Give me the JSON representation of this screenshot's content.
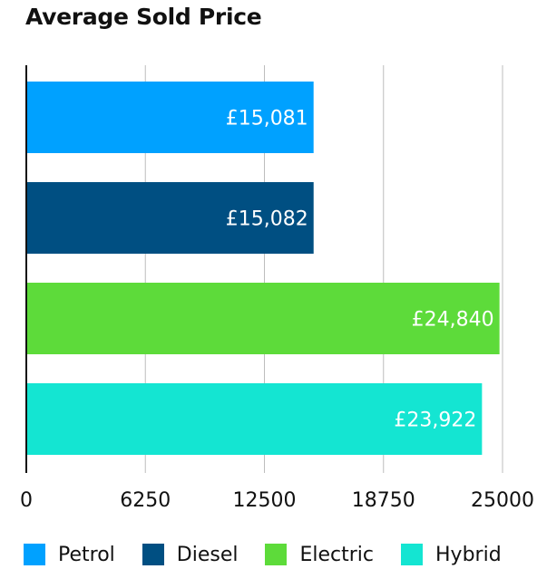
{
  "chart_data": {
    "type": "bar",
    "orientation": "horizontal",
    "title": "Average Sold Price",
    "xlabel": "",
    "ylabel": "",
    "xlim": [
      0,
      25000
    ],
    "x_ticks": [
      0,
      6250,
      12500,
      18750,
      25000
    ],
    "grid": true,
    "legend_position": "bottom",
    "categories": [
      "Petrol",
      "Diesel",
      "Electric",
      "Hybrid"
    ],
    "values": [
      15081,
      15082,
      24840,
      23922
    ],
    "data_labels": [
      "£15,081",
      "£15,082",
      "£24,840",
      "£23,922"
    ],
    "colors": [
      "#00a1ff",
      "#004f82",
      "#5ddb3a",
      "#14e5d2"
    ]
  }
}
